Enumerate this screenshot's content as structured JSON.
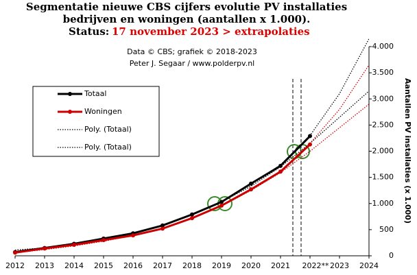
{
  "chart_data": {
    "type": "line",
    "title": [
      "Segmentatie nieuwe CBS cijfers evolutie PV installaties",
      "bedrijven en woningen (aantallen x 1.000)."
    ],
    "status_label": "Status:",
    "status_text": "17 november 2023 > extrapolaties",
    "credits": [
      "Data © CBS; grafiek © 2018-2023",
      "Peter J. Segaar / www.polderpv.nl"
    ],
    "y_axis_label": "Aantallen PV installaties (x 1.000)",
    "x": [
      2012,
      2013,
      2014,
      2015,
      2016,
      2017,
      2018,
      2019,
      2020,
      2021,
      2022,
      2023,
      2024
    ],
    "xlim": [
      2012,
      2024
    ],
    "xticks": [
      2012,
      2013,
      2014,
      2015,
      2016,
      2017,
      2018,
      2019,
      2020,
      2021,
      {
        "value": 2022,
        "label": "2022**"
      },
      2023,
      2024
    ],
    "ylim": [
      0,
      4000
    ],
    "yticks": [
      0,
      500,
      {
        "value": 1000,
        "label": "1.000"
      },
      {
        "value": 1500,
        "label": "1.500"
      },
      {
        "value": 2000,
        "label": "2.000"
      },
      {
        "value": 2500,
        "label": "2.500"
      },
      {
        "value": 3000,
        "label": "3.000"
      },
      {
        "value": 3500,
        "label": "3.500"
      },
      {
        "value": 4000,
        "label": "4.000"
      }
    ],
    "legend": "upper left",
    "series": [
      {
        "name": "Poly. (Totaal)",
        "color": "#000000",
        "style": "dotted",
        "values": [
          110,
          150,
          215,
          300,
          420,
          580,
          790,
          1040,
          1360,
          1740,
          2300,
          3100,
          4150
        ]
      },
      {
        "name": "Poly. (Totaal)",
        "color": "#000000",
        "style": "dotted",
        "values": [
          110,
          150,
          215,
          300,
          420,
          580,
          790,
          1030,
          1330,
          1700,
          2150,
          2650,
          3150
        ]
      },
      {
        "color": "#cc0000",
        "style": "dotted",
        "values": [
          60,
          120,
          190,
          280,
          390,
          520,
          720,
          960,
          1270,
          1620,
          2150,
          2800,
          3650
        ]
      },
      {
        "color": "#cc0000",
        "style": "dotted",
        "values": [
          60,
          120,
          190,
          280,
          390,
          520,
          715,
          950,
          1250,
          1590,
          2000,
          2450,
          2900
        ]
      },
      {
        "name": "Totaal",
        "color": "#000000",
        "style": "solid",
        "values": [
          70,
          150,
          230,
          330,
          430,
          580,
          790,
          1030,
          1380,
          1720,
          2290,
          null,
          null
        ]
      },
      {
        "name": "Woningen",
        "color": "#cc0000",
        "style": "solid",
        "values": [
          60,
          140,
          210,
          300,
          390,
          520,
          720,
          960,
          1270,
          1610,
          2130,
          null,
          null
        ]
      }
    ],
    "legend_order": [
      4,
      5,
      0,
      1
    ]
  }
}
